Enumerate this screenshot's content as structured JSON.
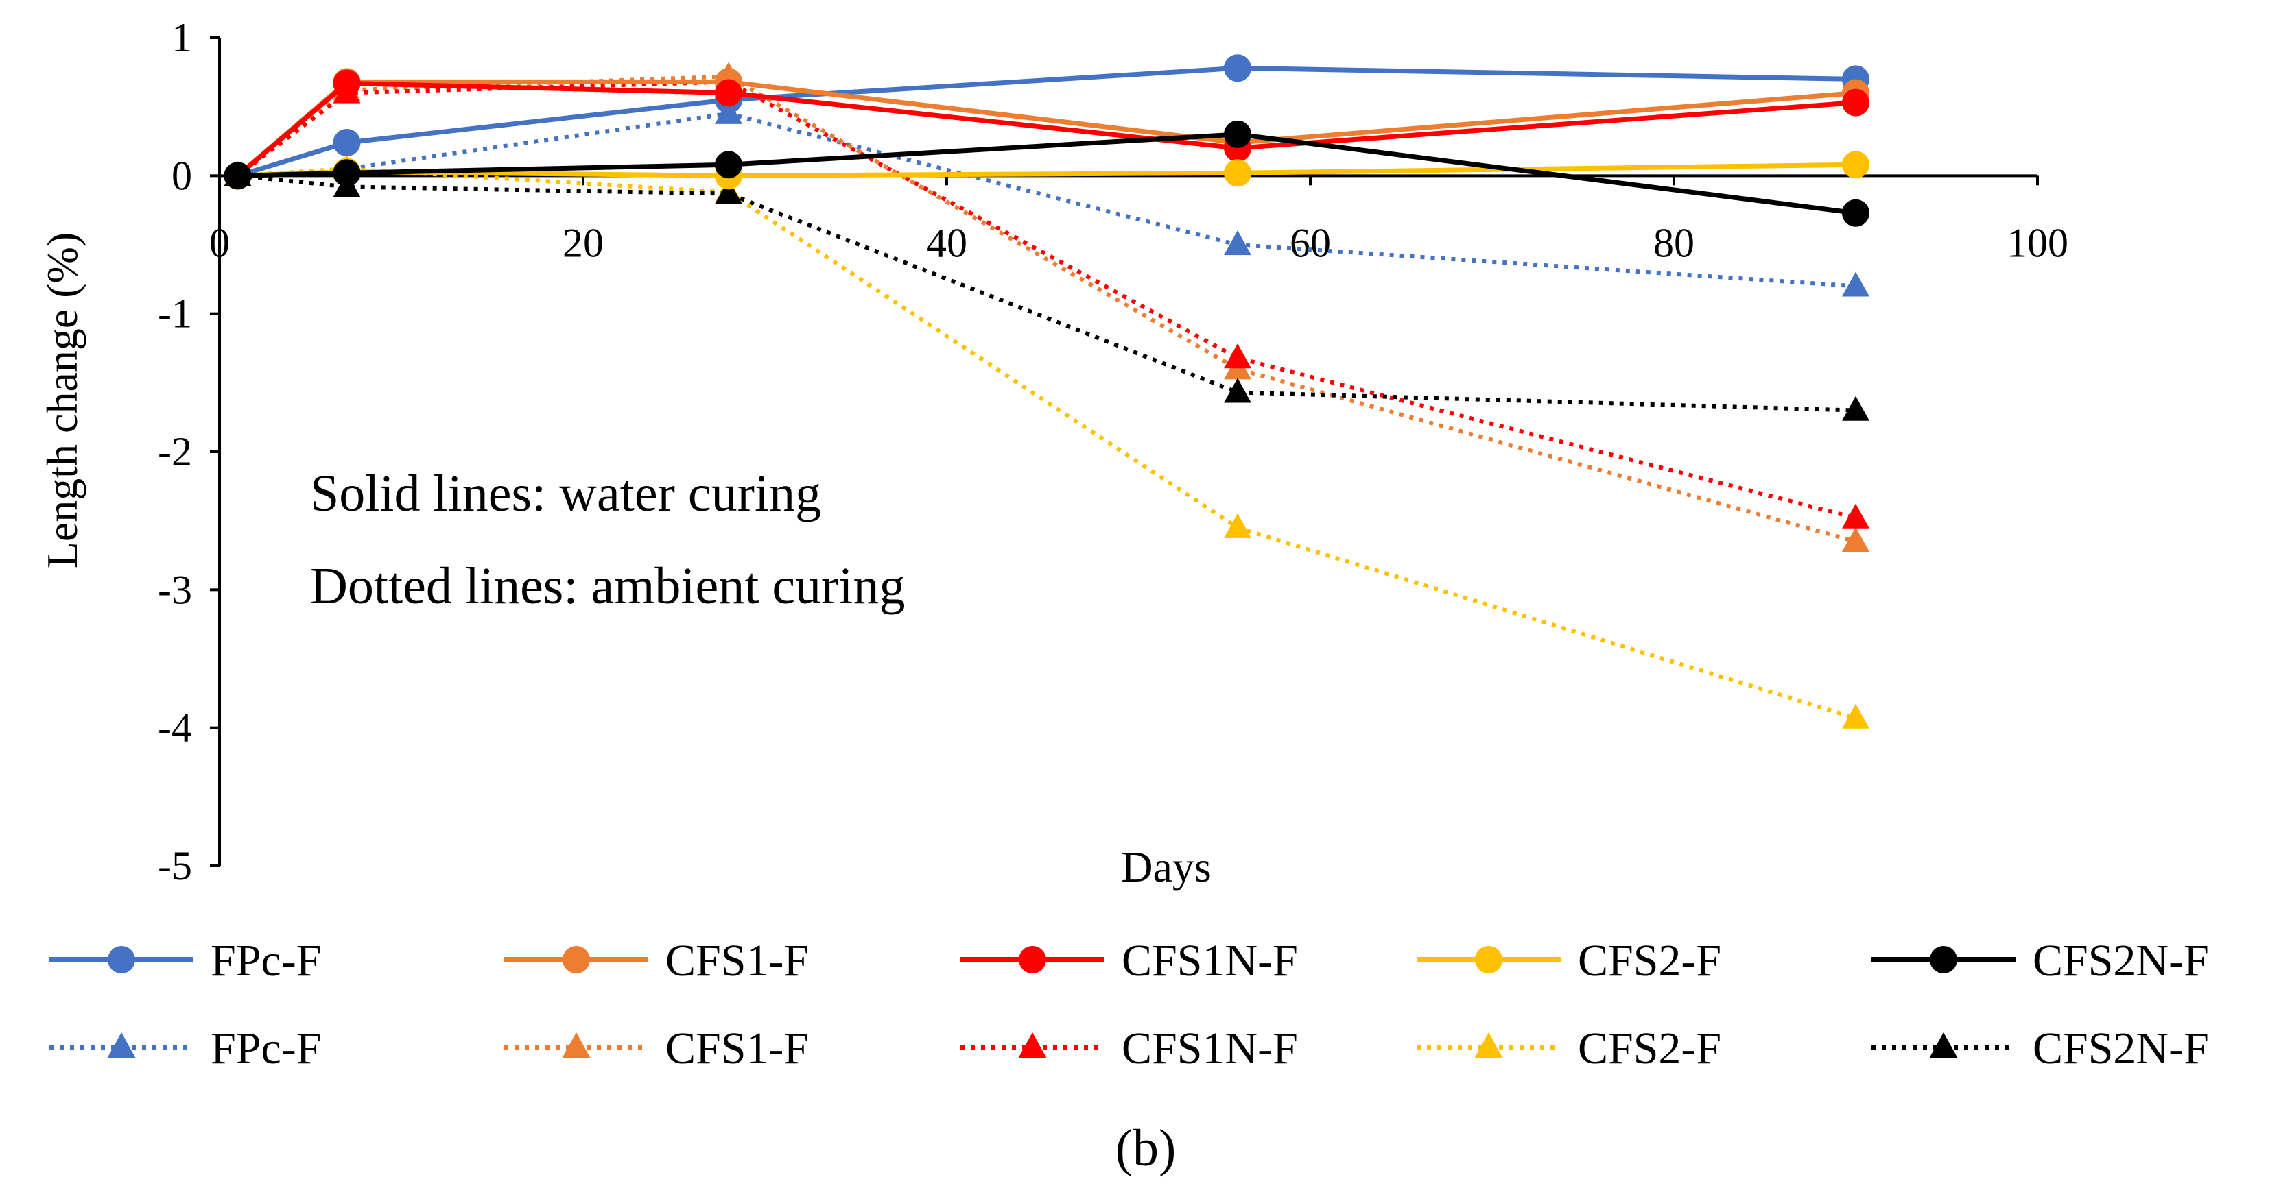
{
  "chart_data": {
    "type": "line",
    "xlabel": "Days",
    "ylabel": "Length change (%)",
    "xlim": [
      0,
      100
    ],
    "ylim": [
      -5,
      1
    ],
    "xticks": [
      0,
      20,
      40,
      60,
      80,
      100
    ],
    "yticks": [
      1,
      0,
      -1,
      -2,
      -3,
      -4,
      -5
    ],
    "grid": false,
    "legend_position": "bottom",
    "annotations": [
      "Solid lines: water curing",
      "Dotted lines: ambient curing"
    ],
    "caption": "(b)",
    "series": [
      {
        "name": "FPc-F",
        "curing": "water",
        "style": "solid",
        "marker": "circle",
        "color": "#4472C4",
        "x": [
          1,
          7,
          28,
          56,
          90
        ],
        "y": [
          0,
          0.24,
          0.55,
          0.78,
          0.7
        ]
      },
      {
        "name": "CFS1-F",
        "curing": "water",
        "style": "solid",
        "marker": "circle",
        "color": "#ED7D31",
        "x": [
          1,
          7,
          28,
          56,
          90
        ],
        "y": [
          0,
          0.68,
          0.68,
          0.24,
          0.6
        ]
      },
      {
        "name": "CFS1N-F",
        "curing": "water",
        "style": "solid",
        "marker": "circle",
        "color": "#FF0000",
        "x": [
          1,
          7,
          28,
          56,
          90
        ],
        "y": [
          0,
          0.67,
          0.6,
          0.2,
          0.53
        ]
      },
      {
        "name": "CFS2-F",
        "curing": "water",
        "style": "solid",
        "marker": "circle",
        "color": "#FFC000",
        "x": [
          1,
          7,
          28,
          56,
          90
        ],
        "y": [
          0,
          0.03,
          0.0,
          0.02,
          0.08
        ]
      },
      {
        "name": "CFS2N-F",
        "curing": "water",
        "style": "solid",
        "marker": "circle",
        "color": "#000000",
        "x": [
          1,
          7,
          28,
          56,
          90
        ],
        "y": [
          0,
          0.02,
          0.08,
          0.3,
          -0.27
        ]
      },
      {
        "name": "FPc-F",
        "curing": "ambient",
        "style": "dotted",
        "marker": "triangle",
        "color": "#4472C4",
        "x": [
          1,
          7,
          28,
          56,
          90
        ],
        "y": [
          0,
          0.05,
          0.45,
          -0.5,
          -0.8
        ]
      },
      {
        "name": "CFS1-F",
        "curing": "ambient",
        "style": "dotted",
        "marker": "triangle",
        "color": "#ED7D31",
        "x": [
          1,
          7,
          28,
          56,
          90
        ],
        "y": [
          0,
          0.62,
          0.72,
          -1.4,
          -2.65
        ]
      },
      {
        "name": "CFS1N-F",
        "curing": "ambient",
        "style": "dotted",
        "marker": "triangle",
        "color": "#FF0000",
        "x": [
          1,
          7,
          28,
          56,
          90
        ],
        "y": [
          0,
          0.6,
          0.68,
          -1.32,
          -2.48
        ]
      },
      {
        "name": "CFS2-F",
        "curing": "ambient",
        "style": "dotted",
        "marker": "triangle",
        "color": "#FFC000",
        "x": [
          1,
          7,
          28,
          56,
          90
        ],
        "y": [
          0,
          0.05,
          -0.12,
          -2.55,
          -3.93
        ]
      },
      {
        "name": "CFS2N-F",
        "curing": "ambient",
        "style": "dotted",
        "marker": "triangle",
        "color": "#000000",
        "x": [
          1,
          7,
          28,
          56,
          90
        ],
        "y": [
          0,
          -0.08,
          -0.13,
          -1.57,
          -1.7
        ]
      }
    ]
  }
}
